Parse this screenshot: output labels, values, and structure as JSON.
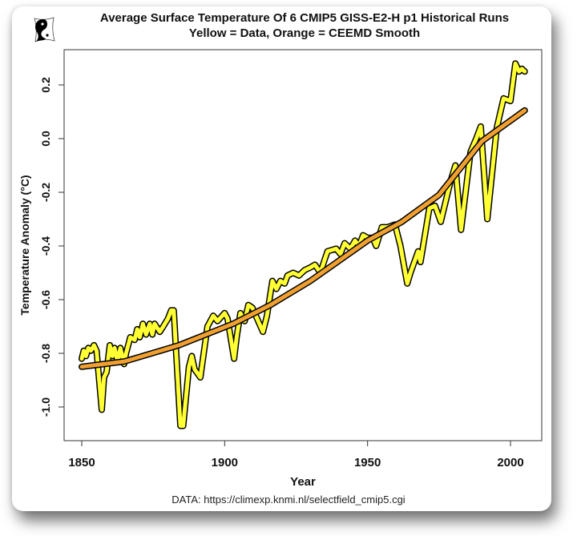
{
  "header": {
    "title_line1": "Average Surface Temperature Of 6 CMIP5 GISS-E2-H p1 Historical Runs",
    "title_line2": "Yellow = Data, Orange = CEEMD Smooth",
    "logo_icon": "yin-yang-pillow-logo"
  },
  "caption": "DATA: https://climexp.knmi.nl/selectfield_cmip5.cgi",
  "colors": {
    "data": "#ffff33",
    "smooth": "#f0a030",
    "outline": "#000000"
  },
  "chart_data": {
    "type": "line",
    "title": "Average Surface Temperature Of 6 CMIP5 GISS-E2-H p1 Historical Runs",
    "subtitle": "Yellow = Data, Orange = CEEMD Smooth",
    "xlabel": "Year",
    "ylabel": "Temperature Anomaly (°C)",
    "xlim": [
      1843,
      2011
    ],
    "ylim": [
      -1.12,
      0.32
    ],
    "xticks": [
      1850,
      1900,
      1950,
      2000
    ],
    "yticks": [
      -1.0,
      -0.8,
      -0.6,
      -0.4,
      -0.2,
      0.0,
      0.2
    ],
    "ytick_labels": [
      "-1.0",
      "-0.8",
      "-0.6",
      "-0.4",
      "-0.2",
      "0.0",
      "0.2"
    ],
    "grid": false,
    "legend": "none (described in subtitle)",
    "series": [
      {
        "name": "Data",
        "color": "#ffff33",
        "x": [
          1850,
          1850.7,
          1851.5,
          1852.3,
          1853.2,
          1854.3,
          1855.2,
          1857,
          1857.8,
          1858.7,
          1859.8,
          1860.7,
          1861.5,
          1862.5,
          1863.5,
          1864.8,
          1865.5,
          1867,
          1868.5,
          1869.4,
          1870.3,
          1871.4,
          1872.5,
          1873.8,
          1874.7,
          1875.5,
          1877.3,
          1878.5,
          1880.2,
          1881.3,
          1882.2,
          1884.5,
          1885.5,
          1887.5,
          1888.5,
          1889.5,
          1891.5,
          1894,
          1896,
          1897.5,
          1900,
          1901,
          1903.3,
          1904.2,
          1905.5,
          1907,
          1908.3,
          1909.7,
          1913.4,
          1914.8,
          1916.7,
          1918.1,
          1919.5,
          1921,
          1922,
          1924,
          1926,
          1928,
          1930,
          1931.6,
          1933.5,
          1935,
          1936,
          1939,
          1940.5,
          1942,
          1944,
          1945.6,
          1947,
          1948.4,
          1950,
          1951.8,
          1953,
          1955,
          1957,
          1959.6,
          1961.5,
          1963.9,
          1965,
          1967.7,
          1968.5,
          1971.6,
          1973.6,
          1975.6,
          1979,
          1980.7,
          1982.7,
          1986,
          1988,
          1989.6,
          1991.9,
          1995.2,
          1997.6,
          2000,
          2001.7,
          2003,
          2004,
          2005
        ],
        "values": [
          -0.82,
          -0.79,
          -0.81,
          -0.78,
          -0.79,
          -0.77,
          -0.79,
          -1.01,
          -0.89,
          -0.87,
          -0.77,
          -0.81,
          -0.78,
          -0.83,
          -0.78,
          -0.84,
          -0.8,
          -0.74,
          -0.75,
          -0.71,
          -0.74,
          -0.69,
          -0.73,
          -0.69,
          -0.73,
          -0.69,
          -0.72,
          -0.7,
          -0.67,
          -0.64,
          -0.64,
          -1.07,
          -1.07,
          -0.85,
          -0.81,
          -0.86,
          -0.89,
          -0.7,
          -0.66,
          -0.68,
          -0.65,
          -0.67,
          -0.82,
          -0.74,
          -0.65,
          -0.68,
          -0.62,
          -0.63,
          -0.72,
          -0.66,
          -0.53,
          -0.56,
          -0.53,
          -0.54,
          -0.51,
          -0.5,
          -0.51,
          -0.49,
          -0.48,
          -0.47,
          -0.5,
          -0.45,
          -0.42,
          -0.41,
          -0.43,
          -0.39,
          -0.41,
          -0.38,
          -0.4,
          -0.36,
          -0.37,
          -0.37,
          -0.4,
          -0.33,
          -0.33,
          -0.32,
          -0.4,
          -0.54,
          -0.5,
          -0.42,
          -0.46,
          -0.26,
          -0.25,
          -0.31,
          -0.16,
          -0.1,
          -0.34,
          -0.05,
          0.0,
          0.045,
          -0.3,
          0.04,
          0.15,
          0.14,
          0.28,
          0.25,
          0.26,
          0.25
        ]
      },
      {
        "name": "CEEMD Smooth",
        "color": "#f0a030",
        "x": [
          1850,
          1865,
          1884,
          1903,
          1916,
          1930,
          1950,
          1962,
          1975,
          1990,
          2005
        ],
        "values": [
          -0.85,
          -0.83,
          -0.77,
          -0.69,
          -0.62,
          -0.53,
          -0.38,
          -0.31,
          -0.21,
          -0.01,
          0.105
        ]
      }
    ]
  }
}
